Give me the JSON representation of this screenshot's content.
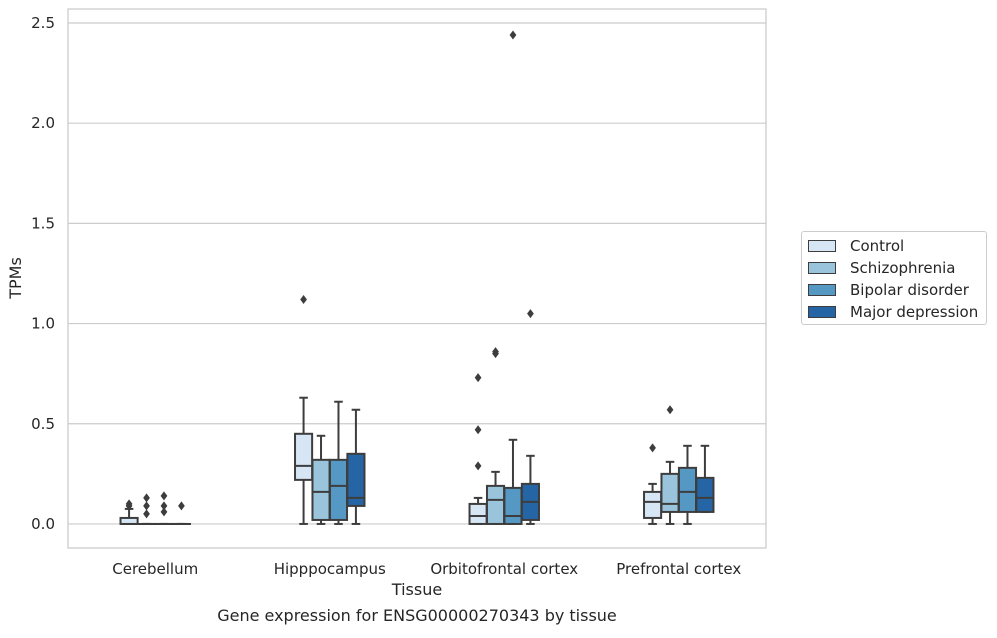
{
  "caption": "Gene expression for ENSG00000270343 by tissue",
  "chart_data": {
    "type": "box",
    "xlabel": "Tissue",
    "ylabel": "TPMs",
    "ylim": [
      -0.12,
      2.57
    ],
    "yticks": [
      "0.0",
      "0.5",
      "1.0",
      "1.5",
      "2.0",
      "2.5"
    ],
    "categories": [
      "Cerebellum",
      "Hipppocampus",
      "Orbitofrontal cortex",
      "Prefrontal cortex"
    ],
    "grid": true,
    "legend_placement": "right",
    "series": [
      {
        "name": "Control",
        "color": "#d7e6f4",
        "boxes": [
          {
            "q1": 0.0,
            "median": 0.0,
            "q3": 0.03,
            "low": 0.0,
            "high": 0.075,
            "outliers": [
              0.09,
              0.1
            ]
          },
          {
            "q1": 0.22,
            "median": 0.29,
            "q3": 0.45,
            "low": 0.0,
            "high": 0.63,
            "outliers": [
              1.12
            ]
          },
          {
            "q1": 0.0,
            "median": 0.04,
            "q3": 0.1,
            "low": 0.0,
            "high": 0.13,
            "outliers": [
              0.29,
              0.47,
              0.73
            ]
          },
          {
            "q1": 0.03,
            "median": 0.11,
            "q3": 0.16,
            "low": 0.0,
            "high": 0.2,
            "outliers": [
              0.38
            ]
          }
        ]
      },
      {
        "name": "Schizophrenia",
        "color": "#9ac4dc",
        "boxes": [
          {
            "q1": 0.0,
            "median": 0.0,
            "q3": 0.0,
            "low": 0.0,
            "high": 0.0,
            "outliers": [
              0.05,
              0.09,
              0.13
            ]
          },
          {
            "q1": 0.02,
            "median": 0.16,
            "q3": 0.32,
            "low": 0.0,
            "high": 0.44,
            "outliers": []
          },
          {
            "q1": 0.0,
            "median": 0.12,
            "q3": 0.19,
            "low": 0.0,
            "high": 0.26,
            "outliers": [
              0.85,
              0.86
            ]
          },
          {
            "q1": 0.06,
            "median": 0.1,
            "q3": 0.25,
            "low": 0.0,
            "high": 0.31,
            "outliers": [
              0.57
            ]
          }
        ]
      },
      {
        "name": "Bipolar disorder",
        "color": "#5598c4",
        "boxes": [
          {
            "q1": 0.0,
            "median": 0.0,
            "q3": 0.0,
            "low": 0.0,
            "high": 0.0,
            "outliers": [
              0.06,
              0.09,
              0.14
            ]
          },
          {
            "q1": 0.02,
            "median": 0.19,
            "q3": 0.32,
            "low": 0.0,
            "high": 0.61,
            "outliers": []
          },
          {
            "q1": 0.0,
            "median": 0.04,
            "q3": 0.18,
            "low": 0.0,
            "high": 0.42,
            "outliers": [
              2.44
            ]
          },
          {
            "q1": 0.06,
            "median": 0.16,
            "q3": 0.28,
            "low": 0.0,
            "high": 0.39,
            "outliers": []
          }
        ]
      },
      {
        "name": "Major depression",
        "color": "#2565a5",
        "boxes": [
          {
            "q1": 0.0,
            "median": 0.0,
            "q3": 0.0,
            "low": 0.0,
            "high": 0.0,
            "outliers": [
              0.09
            ]
          },
          {
            "q1": 0.09,
            "median": 0.13,
            "q3": 0.35,
            "low": 0.0,
            "high": 0.57,
            "outliers": []
          },
          {
            "q1": 0.02,
            "median": 0.11,
            "q3": 0.2,
            "low": 0.0,
            "high": 0.34,
            "outliers": [
              1.05
            ]
          },
          {
            "q1": 0.06,
            "median": 0.13,
            "q3": 0.23,
            "low": 0.06,
            "high": 0.39,
            "outliers": []
          }
        ]
      }
    ]
  }
}
